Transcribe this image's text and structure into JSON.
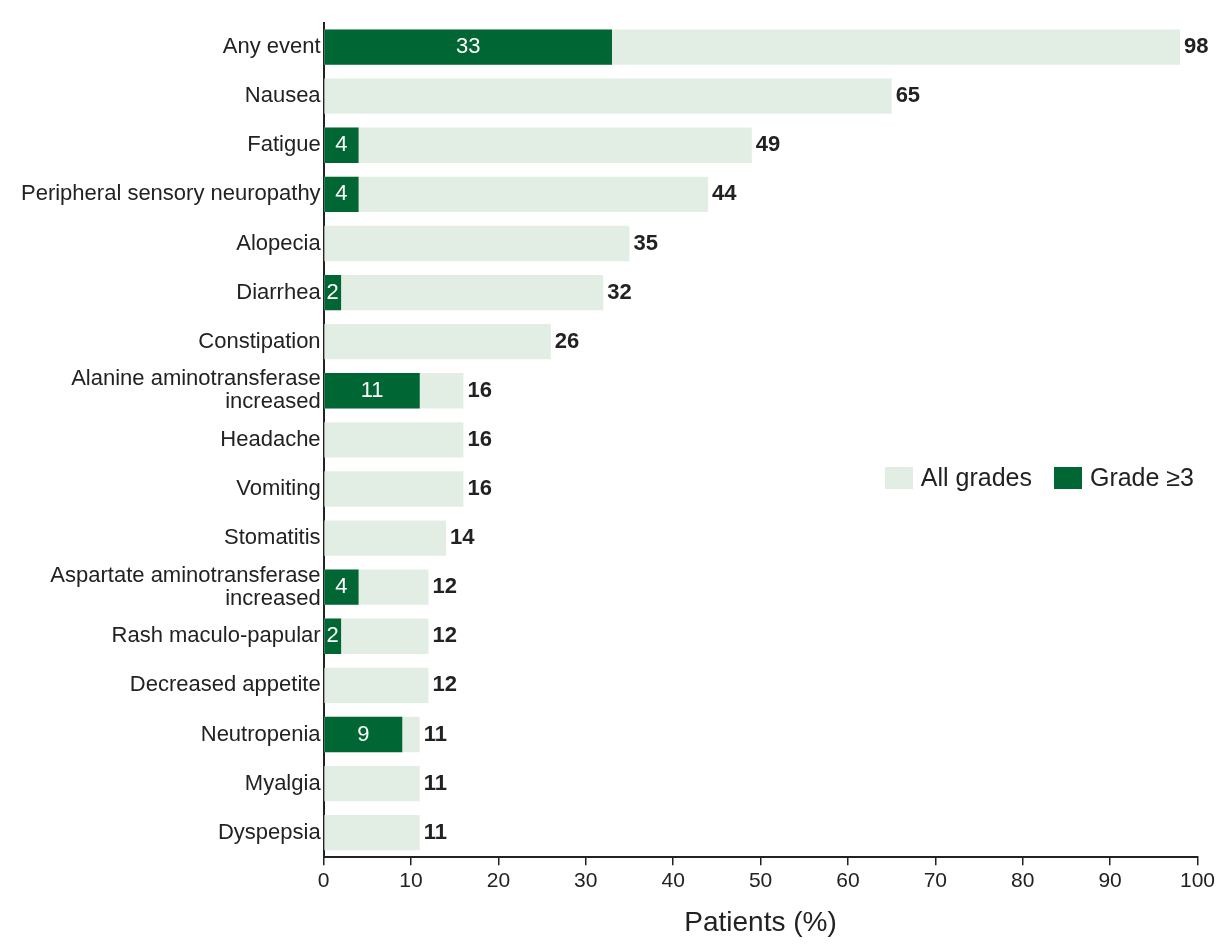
{
  "chart_data": {
    "type": "bar",
    "orientation": "horizontal",
    "xlabel": "Patients (%)",
    "categories": [
      "Any event",
      "Nausea",
      "Fatigue",
      "Peripheral sensory neuropathy",
      "Alopecia",
      "Diarrhea",
      "Constipation",
      "Alanine aminotransferase increased",
      "Headache",
      "Vomiting",
      "Stomatitis",
      "Aspartate aminotransferase increased",
      "Rash maculo-papular",
      "Decreased appetite",
      "Neutropenia",
      "Myalgia",
      "Dyspepsia"
    ],
    "series": [
      {
        "name": "All grades",
        "color": "#e2eee4",
        "values": [
          98,
          65,
          49,
          44,
          35,
          32,
          26,
          16,
          16,
          16,
          14,
          12,
          12,
          12,
          11,
          11,
          11
        ]
      },
      {
        "name": "Grade ≥3",
        "color": "#006633",
        "values": [
          33,
          null,
          4,
          4,
          null,
          2,
          null,
          11,
          null,
          null,
          null,
          4,
          2,
          null,
          9,
          null,
          null
        ]
      }
    ],
    "xlim": [
      0,
      100
    ],
    "xticks": [
      0,
      10,
      20,
      30,
      40,
      50,
      60,
      70,
      80,
      90,
      100
    ],
    "grid": false,
    "legend": "right",
    "data_labels": true
  }
}
